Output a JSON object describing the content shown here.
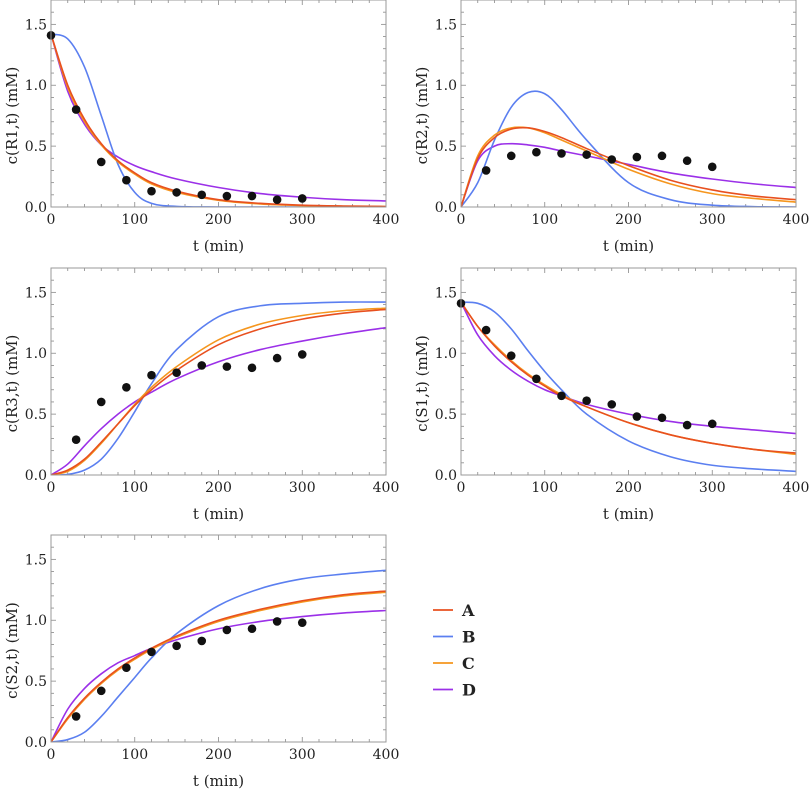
{
  "chart_data": [
    {
      "type": "line",
      "ylabel": "c(R1,t) (mM)",
      "xlabel": "t (min)",
      "xlim": [
        0,
        400
      ],
      "ylim": [
        0,
        1.7
      ],
      "t": [
        0,
        20,
        40,
        60,
        80,
        100,
        120,
        150,
        200,
        250,
        300,
        350,
        400
      ],
      "series": [
        {
          "name": "A",
          "values": [
            1.42,
            1.0,
            0.72,
            0.52,
            0.38,
            0.28,
            0.2,
            0.13,
            0.06,
            0.03,
            0.015,
            0.008,
            0.004
          ]
        },
        {
          "name": "B",
          "values": [
            1.42,
            1.38,
            1.15,
            0.75,
            0.35,
            0.12,
            0.03,
            0.005,
            0,
            0,
            0,
            0,
            0
          ]
        },
        {
          "name": "C",
          "values": [
            1.42,
            0.98,
            0.7,
            0.51,
            0.37,
            0.27,
            0.19,
            0.12,
            0.055,
            0.025,
            0.012,
            0.006,
            0.003
          ]
        },
        {
          "name": "D",
          "values": [
            1.42,
            0.95,
            0.68,
            0.51,
            0.41,
            0.34,
            0.29,
            0.23,
            0.16,
            0.11,
            0.08,
            0.06,
            0.05
          ]
        }
      ],
      "points": {
        "t": [
          0,
          30,
          60,
          90,
          120,
          150,
          180,
          210,
          240,
          270,
          300
        ],
        "values": [
          1.41,
          0.8,
          0.37,
          0.22,
          0.13,
          0.12,
          0.1,
          0.09,
          0.09,
          0.06,
          0.07
        ]
      }
    },
    {
      "type": "line",
      "ylabel": "c(R2,t) (mM)",
      "xlabel": "t (min)",
      "xlim": [
        0,
        400
      ],
      "ylim": [
        0,
        1.7
      ],
      "t": [
        0,
        20,
        40,
        60,
        80,
        100,
        120,
        150,
        200,
        250,
        300,
        350,
        400
      ],
      "series": [
        {
          "name": "A",
          "values": [
            0,
            0.4,
            0.57,
            0.64,
            0.65,
            0.62,
            0.57,
            0.48,
            0.34,
            0.22,
            0.14,
            0.09,
            0.06
          ]
        },
        {
          "name": "B",
          "values": [
            0,
            0.2,
            0.55,
            0.82,
            0.94,
            0.93,
            0.8,
            0.55,
            0.2,
            0.06,
            0.015,
            0.003,
            0
          ]
        },
        {
          "name": "C",
          "values": [
            0,
            0.42,
            0.59,
            0.65,
            0.65,
            0.61,
            0.55,
            0.46,
            0.31,
            0.19,
            0.11,
            0.07,
            0.04
          ]
        },
        {
          "name": "D",
          "values": [
            0,
            0.38,
            0.5,
            0.52,
            0.51,
            0.49,
            0.46,
            0.42,
            0.35,
            0.28,
            0.23,
            0.19,
            0.16
          ]
        }
      ],
      "points": {
        "t": [
          30,
          60,
          90,
          120,
          150,
          180,
          210,
          240,
          270,
          300
        ],
        "values": [
          0.3,
          0.42,
          0.45,
          0.44,
          0.43,
          0.39,
          0.41,
          0.42,
          0.38,
          0.33
        ]
      }
    },
    {
      "type": "line",
      "ylabel": "c(R3,t) (mM)",
      "xlabel": "t (min)",
      "xlim": [
        0,
        400
      ],
      "ylim": [
        0,
        1.7
      ],
      "t": [
        0,
        20,
        40,
        60,
        80,
        100,
        120,
        150,
        200,
        250,
        300,
        350,
        400
      ],
      "series": [
        {
          "name": "A",
          "values": [
            0,
            0.04,
            0.13,
            0.27,
            0.42,
            0.57,
            0.7,
            0.86,
            1.07,
            1.2,
            1.28,
            1.33,
            1.36
          ]
        },
        {
          "name": "B",
          "values": [
            0,
            0.005,
            0.04,
            0.13,
            0.3,
            0.52,
            0.75,
            1.03,
            1.3,
            1.39,
            1.41,
            1.42,
            1.42
          ]
        },
        {
          "name": "C",
          "values": [
            0,
            0.03,
            0.12,
            0.26,
            0.42,
            0.58,
            0.72,
            0.89,
            1.11,
            1.24,
            1.31,
            1.35,
            1.37
          ]
        },
        {
          "name": "D",
          "values": [
            0,
            0.09,
            0.24,
            0.38,
            0.5,
            0.6,
            0.68,
            0.79,
            0.93,
            1.03,
            1.1,
            1.16,
            1.21
          ]
        }
      ],
      "points": {
        "t": [
          30,
          60,
          90,
          120,
          150,
          180,
          210,
          240,
          270,
          300
        ],
        "values": [
          0.29,
          0.6,
          0.72,
          0.82,
          0.84,
          0.9,
          0.89,
          0.88,
          0.96,
          0.99
        ]
      }
    },
    {
      "type": "line",
      "ylabel": "c(S1,t) (mM)",
      "xlabel": "t (min)",
      "xlim": [
        0,
        400
      ],
      "ylim": [
        0,
        1.7
      ],
      "t": [
        0,
        20,
        40,
        60,
        80,
        100,
        120,
        150,
        200,
        250,
        300,
        350,
        400
      ],
      "series": [
        {
          "name": "A",
          "values": [
            1.42,
            1.22,
            1.06,
            0.93,
            0.82,
            0.73,
            0.65,
            0.56,
            0.43,
            0.33,
            0.26,
            0.21,
            0.18
          ]
        },
        {
          "name": "B",
          "values": [
            1.42,
            1.41,
            1.34,
            1.2,
            1.02,
            0.85,
            0.7,
            0.5,
            0.28,
            0.15,
            0.08,
            0.05,
            0.03
          ]
        },
        {
          "name": "C",
          "values": [
            1.42,
            1.22,
            1.07,
            0.94,
            0.83,
            0.74,
            0.66,
            0.56,
            0.43,
            0.33,
            0.26,
            0.21,
            0.17
          ]
        },
        {
          "name": "D",
          "values": [
            1.42,
            1.15,
            0.98,
            0.86,
            0.77,
            0.7,
            0.65,
            0.58,
            0.5,
            0.44,
            0.4,
            0.37,
            0.34
          ]
        }
      ],
      "points": {
        "t": [
          0,
          30,
          60,
          90,
          120,
          150,
          180,
          210,
          240,
          270,
          300
        ],
        "values": [
          1.41,
          1.19,
          0.98,
          0.79,
          0.65,
          0.61,
          0.58,
          0.48,
          0.47,
          0.41,
          0.42
        ]
      }
    },
    {
      "type": "line",
      "ylabel": "c(S2,t) (mM)",
      "xlabel": "t (min)",
      "xlim": [
        0,
        400
      ],
      "ylim": [
        0,
        1.7
      ],
      "t": [
        0,
        20,
        40,
        60,
        80,
        100,
        120,
        150,
        200,
        250,
        300,
        350,
        400
      ],
      "series": [
        {
          "name": "A",
          "values": [
            0,
            0.2,
            0.36,
            0.49,
            0.6,
            0.69,
            0.77,
            0.87,
            1.0,
            1.09,
            1.16,
            1.21,
            1.24
          ]
        },
        {
          "name": "B",
          "values": [
            0,
            0.02,
            0.08,
            0.21,
            0.37,
            0.53,
            0.69,
            0.89,
            1.12,
            1.26,
            1.34,
            1.38,
            1.41
          ]
        },
        {
          "name": "C",
          "values": [
            0,
            0.19,
            0.35,
            0.48,
            0.59,
            0.68,
            0.76,
            0.86,
            0.99,
            1.08,
            1.15,
            1.2,
            1.23
          ]
        },
        {
          "name": "D",
          "values": [
            0,
            0.27,
            0.44,
            0.56,
            0.65,
            0.71,
            0.77,
            0.84,
            0.93,
            0.99,
            1.03,
            1.06,
            1.08
          ]
        }
      ],
      "points": {
        "t": [
          30,
          60,
          90,
          120,
          150,
          180,
          210,
          240,
          270,
          300
        ],
        "values": [
          0.21,
          0.42,
          0.61,
          0.74,
          0.79,
          0.83,
          0.92,
          0.93,
          0.99,
          0.98
        ]
      }
    }
  ],
  "xticks": [
    "0",
    "100",
    "200",
    "300",
    "400"
  ],
  "yticks": [
    "0.0",
    "0.5",
    "1.0",
    "1.5"
  ],
  "legend": [
    {
      "name": "A",
      "color": "#e8501f"
    },
    {
      "name": "B",
      "color": "#5b7ff0"
    },
    {
      "name": "C",
      "color": "#f5961e"
    },
    {
      "name": "D",
      "color": "#9b30e8"
    }
  ]
}
